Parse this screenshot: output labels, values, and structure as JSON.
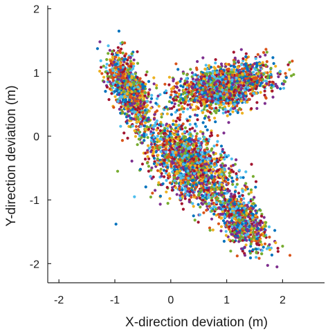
{
  "chart_data": {
    "type": "scatter",
    "title": "",
    "xlabel": "X-direction deviation (m)",
    "ylabel": "Y-direction deviation (m)",
    "xlim": [
      -2.2,
      2.75
    ],
    "ylim": [
      -2.3,
      2.05
    ],
    "xticks": [
      -2,
      -1,
      0,
      1,
      2
    ],
    "yticks": [
      -2,
      -1,
      0,
      1,
      2
    ],
    "xtick_labels": [
      "-2",
      "-1",
      "0",
      "1",
      "2"
    ],
    "ytick_labels": [
      "-2",
      "-1",
      "0",
      "1",
      "2"
    ],
    "grid": false,
    "legend": "none",
    "palette": [
      "#0072bd",
      "#d95319",
      "#edb120",
      "#7e2f8e",
      "#77ac30",
      "#4dbeee",
      "#a2142f"
    ],
    "clusters": [
      {
        "x": -0.75,
        "y": 0.75,
        "sx": 0.18,
        "sy": 0.26,
        "rho": -0.55,
        "n": 1100
      },
      {
        "x": 0.95,
        "y": 0.78,
        "sx": 0.42,
        "sy": 0.18,
        "rho": 0.35,
        "n": 1700
      },
      {
        "x": 0.35,
        "y": -0.45,
        "sx": 0.4,
        "sy": 0.34,
        "rho": -0.55,
        "n": 1700
      },
      {
        "x": 1.3,
        "y": -1.35,
        "sx": 0.22,
        "sy": 0.22,
        "rho": -0.5,
        "n": 700
      }
    ],
    "outliers": [
      {
        "x": -0.98,
        "y": -1.38
      },
      {
        "x": -0.95,
        "y": -0.55
      },
      {
        "x": -0.65,
        "y": -0.95
      },
      {
        "x": 1.9,
        "y": -2.05
      },
      {
        "x": 2.1,
        "y": 1.12
      },
      {
        "x": 1.75,
        "y": -1.75
      },
      {
        "x": -1.2,
        "y": 1.1
      },
      {
        "x": 0.95,
        "y": 0.05
      }
    ]
  }
}
